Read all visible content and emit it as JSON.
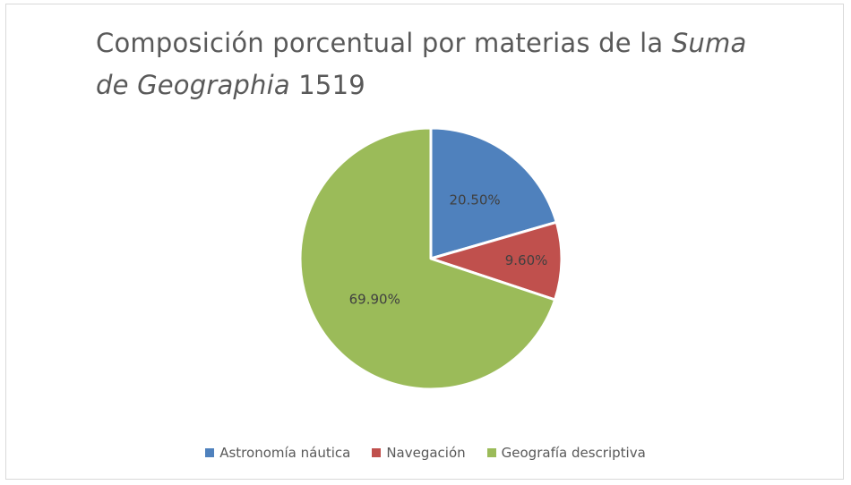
{
  "chart_data": {
    "type": "pie",
    "title": {
      "part1": "Composición porcentual por materias de la ",
      "part2_italic": "Suma",
      "part3": " ",
      "part4_italic": "de Geographia",
      "part5": " 1519"
    },
    "categories": [
      "Astronomía náutica",
      "Navegación",
      "Geografía descriptiva"
    ],
    "values": [
      20.5,
      9.6,
      69.9
    ],
    "data_labels": [
      "20.50%",
      "9.60%",
      "69.90%"
    ],
    "colors": [
      "#4f81bd",
      "#c0504d",
      "#9bbb59"
    ],
    "legend_position": "bottom"
  }
}
